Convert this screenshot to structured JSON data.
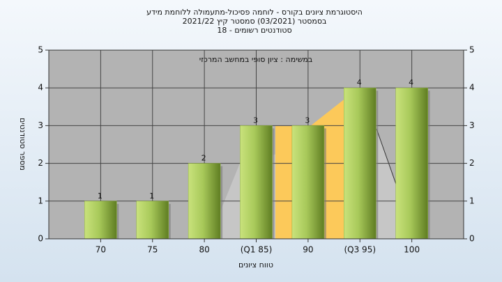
{
  "chart_data": {
    "type": "bar",
    "title": "היסטוגרמת ציונים בקורס - לוחמה פסיכול-מתעמולה ללוחמת מידע",
    "subtitle": [
      "בסמסטר  (03/2021)  סמסטר קיץ  2021/22",
      "סטודנטים רשומים - 18"
    ],
    "annotation": "במשימה : ציון סופי במחשב המרכזי",
    "x_label": "טווח ציונים",
    "y_label": "מספר סטודנטים",
    "categories": [
      "70",
      "75",
      "80",
      "(Q1 85)",
      "90",
      "(Q3 95)",
      "100"
    ],
    "values": [
      1,
      1,
      2,
      3,
      3,
      4,
      4
    ],
    "color": "#8fb33c",
    "ylim": [
      0,
      5
    ],
    "yticks": [
      0,
      1,
      2,
      3,
      4,
      5
    ],
    "y2lim": [
      0,
      5
    ],
    "y2ticks": [
      0,
      1,
      2,
      3,
      4,
      5
    ],
    "grid": true
  }
}
